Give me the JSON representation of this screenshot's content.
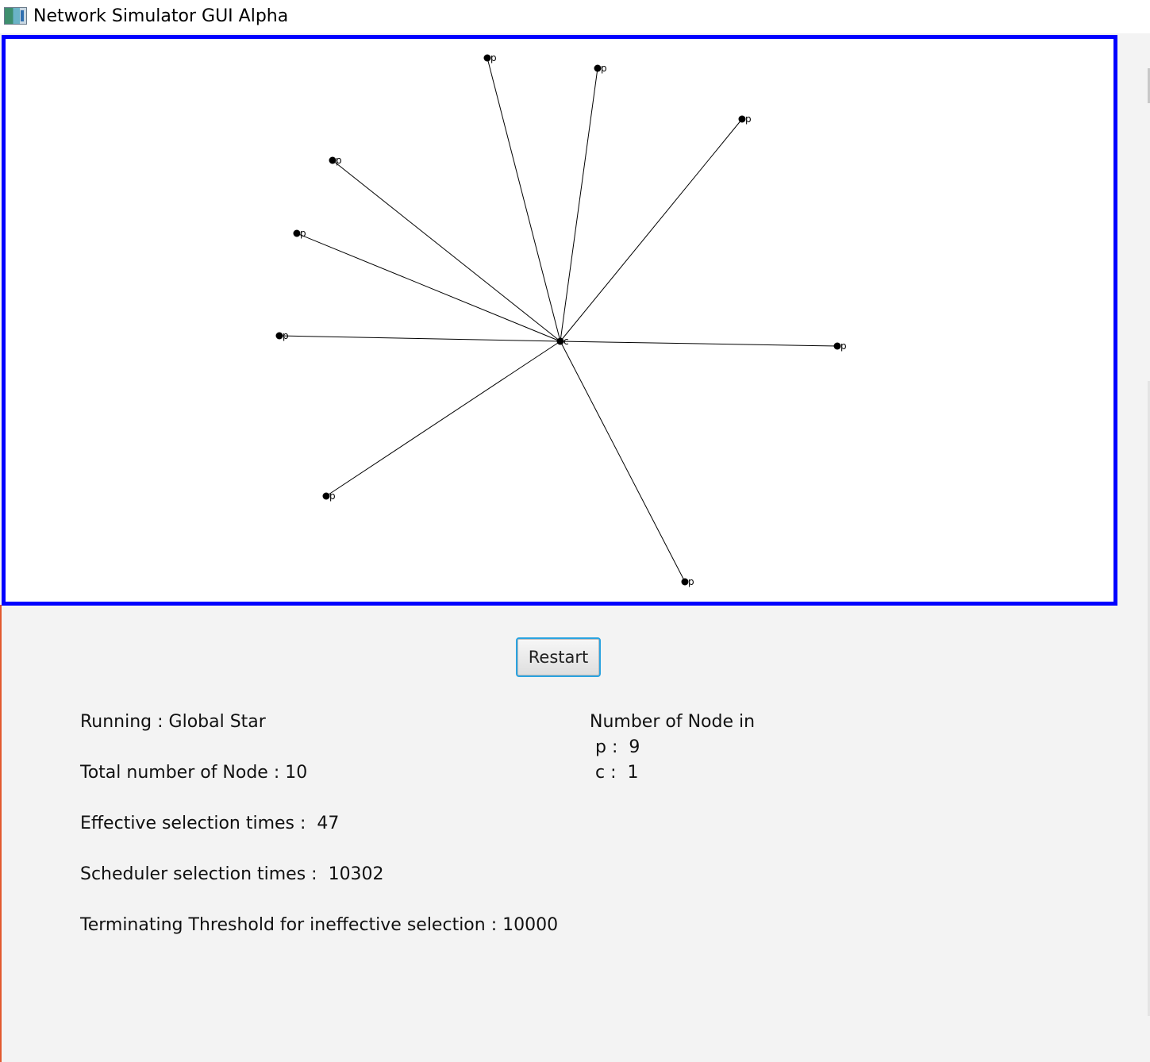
{
  "window": {
    "title": "Network Simulator GUI Alpha",
    "icon": "app-window-icon"
  },
  "graph": {
    "border_color": "#0000ff",
    "center_node": {
      "label": "c"
    },
    "nodes": [
      {
        "label": "p"
      },
      {
        "label": "p"
      },
      {
        "label": "p"
      },
      {
        "label": "p"
      },
      {
        "label": "p"
      },
      {
        "label": "p"
      },
      {
        "label": "p"
      },
      {
        "label": "p"
      },
      {
        "label": "p"
      }
    ]
  },
  "controls": {
    "restart_label": "Restart"
  },
  "stats": {
    "running": "Running : Global Star",
    "total_nodes": "Total number of Node : 10",
    "effective_selection": "Effective selection times :  47",
    "scheduler_selection": "Scheduler selection times :  10302",
    "threshold": "Terminating Threshold for ineffective selection : 10000"
  },
  "node_counts": {
    "heading": "Number of Node in",
    "rows": [
      " p :  9",
      " c :  1"
    ]
  }
}
